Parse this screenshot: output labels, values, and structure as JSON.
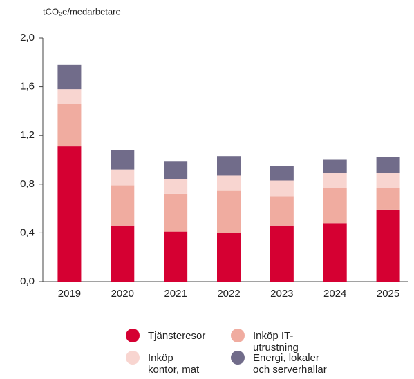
{
  "chart_data": {
    "type": "stacked_bar",
    "ylabel": "tCO₂e/medarbetare",
    "categories": [
      "2019",
      "2020",
      "2021",
      "2022",
      "2023",
      "2024",
      "2025"
    ],
    "series": [
      {
        "name": "Tjänsteresor",
        "color": "#d50032",
        "values": [
          1.11,
          0.46,
          0.41,
          0.4,
          0.46,
          0.48,
          0.59
        ]
      },
      {
        "name": "Inköp IT-utrustning",
        "color": "#f0aca0",
        "values": [
          0.35,
          0.33,
          0.31,
          0.35,
          0.24,
          0.29,
          0.18
        ]
      },
      {
        "name": "Inköp kontor, mat",
        "color": "#f8d5d0",
        "values": [
          0.12,
          0.13,
          0.12,
          0.12,
          0.13,
          0.12,
          0.12
        ]
      },
      {
        "name": "Energi, lokaler och serverhallar",
        "color": "#716c8a",
        "values": [
          0.2,
          0.16,
          0.15,
          0.16,
          0.12,
          0.11,
          0.13
        ]
      }
    ],
    "ylim": [
      0,
      2
    ],
    "yticks": [
      {
        "value": 0,
        "label": "0,0"
      },
      {
        "value": 0.4,
        "label": "0,4"
      },
      {
        "value": 0.8,
        "label": "0,8"
      },
      {
        "value": 1.2,
        "label": "1,2"
      },
      {
        "value": 1.6,
        "label": "1,6"
      },
      {
        "value": 2,
        "label": "2,0"
      }
    ]
  }
}
